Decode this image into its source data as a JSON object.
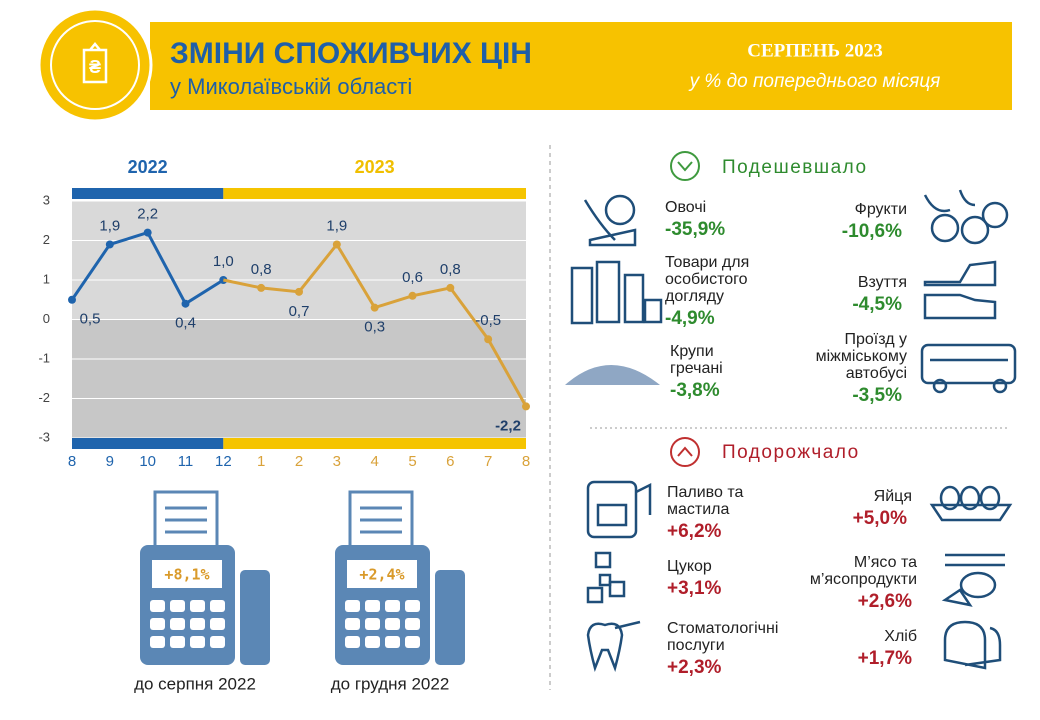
{
  "header": {
    "title": "ЗМІНИ СПОЖИВЧИХ ЦІН",
    "subtitle": "у Миколаївській області",
    "period": "СЕРПЕНЬ 2023",
    "period_note": "у % до попереднього місяця"
  },
  "chart_data": {
    "type": "line",
    "categories": [
      "8",
      "9",
      "10",
      "11",
      "12",
      "1",
      "2",
      "3",
      "4",
      "5",
      "6",
      "7",
      "8"
    ],
    "series": [
      {
        "name": "2022",
        "color": "#1f64ad",
        "band_color": "#1f64ad",
        "values": [
          0.5,
          1.9,
          2.2,
          0.4,
          1.0,
          null,
          null,
          null,
          null,
          null,
          null,
          null,
          null
        ],
        "value_labels": [
          "0,5",
          "1,9",
          "2,2",
          "0,4",
          "1,0",
          null,
          null,
          null,
          null,
          null,
          null,
          null,
          null
        ]
      },
      {
        "name": "2023",
        "color": "#d9a23a",
        "band_color": "#f5c400",
        "values": [
          null,
          null,
          null,
          null,
          null,
          0.8,
          0.7,
          1.9,
          0.3,
          0.6,
          0.8,
          -0.5,
          -2.2
        ],
        "value_labels": [
          null,
          null,
          null,
          null,
          null,
          "0,8",
          "0,7",
          "1,9",
          "0,3",
          "0,6",
          "0,8",
          "-0,5",
          "-2,2"
        ]
      }
    ],
    "ylim": [
      -3,
      3
    ],
    "yticks": [
      3,
      2,
      1,
      0,
      -1,
      -2,
      -3
    ]
  },
  "receipts": [
    {
      "value": "+8,1%",
      "label": "до серпня 2022"
    },
    {
      "value": "+2,4%",
      "label": "до грудня 2022"
    }
  ],
  "cheaper": {
    "title": "Подешевшало",
    "items": [
      {
        "name": [
          "Овочі"
        ],
        "value": "-35,9%"
      },
      {
        "name": [
          "Фрукти"
        ],
        "value": "-10,6%"
      },
      {
        "name": [
          "Товари для",
          "особистого",
          "догляду"
        ],
        "value": "-4,9%"
      },
      {
        "name": [
          "Взуття"
        ],
        "value": "-4,5%"
      },
      {
        "name": [
          "Крупи",
          "гречані"
        ],
        "value": "-3,8%"
      },
      {
        "name": [
          "Проїзд у",
          "міжміському",
          "автобусі"
        ],
        "value": "-3,5%"
      }
    ]
  },
  "pricier": {
    "title": "Подорожчало",
    "items": [
      {
        "name": [
          "Паливо та",
          "мастила"
        ],
        "value": "+6,2%"
      },
      {
        "name": [
          "Яйця"
        ],
        "value": "+5,0%"
      },
      {
        "name": [
          "Цукор"
        ],
        "value": "+3,1%"
      },
      {
        "name": [
          "М’ясо та",
          "м’ясопродукти"
        ],
        "value": "+2,6%"
      },
      {
        "name": [
          "Стоматологічні",
          "послуги"
        ],
        "value": "+2,3%"
      },
      {
        "name": [
          "Хліб"
        ],
        "value": "+1,7%"
      }
    ]
  }
}
